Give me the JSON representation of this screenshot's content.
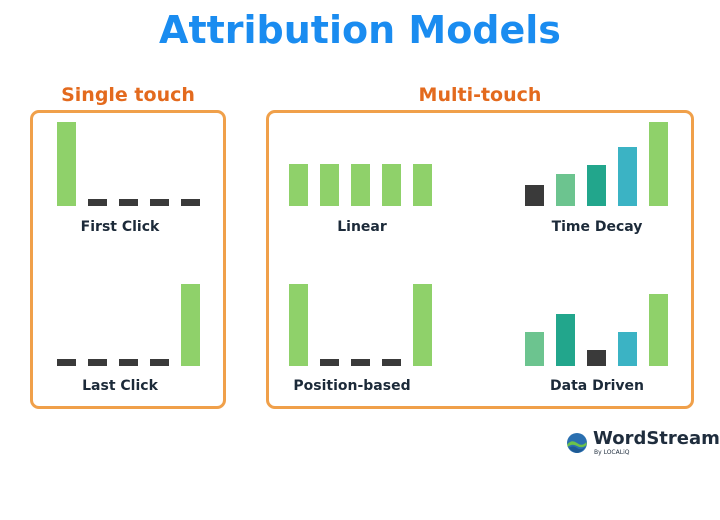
{
  "title": "Attribution Models",
  "sections": {
    "single": "Single touch",
    "multi": "Multi-touch"
  },
  "colors": {
    "title": "#1a8cf0",
    "section": "#e36a1e",
    "frame": "#f0a04a",
    "green": "#8fd16a",
    "mint": "#6cc48f",
    "teal": "#22a68c",
    "aqua": "#3bb3c4",
    "dark": "#3a3a3a"
  },
  "models": [
    {
      "key": "first-click",
      "label": "First Click",
      "weights": [
        1,
        0,
        0,
        0,
        0
      ]
    },
    {
      "key": "last-click",
      "label": "Last Click",
      "weights": [
        0,
        0,
        0,
        0,
        1
      ]
    },
    {
      "key": "linear",
      "label": "Linear",
      "weights": [
        0.5,
        0.5,
        0.5,
        0.5,
        0.5
      ]
    },
    {
      "key": "time-decay",
      "label": "Time Decay",
      "weights": [
        0.25,
        0.38,
        0.49,
        0.7,
        1
      ]
    },
    {
      "key": "position-based",
      "label": "Position-based",
      "weights": [
        1,
        0,
        0,
        0,
        1
      ]
    },
    {
      "key": "data-driven",
      "label": "Data Driven",
      "weights": [
        0.42,
        0.64,
        0.2,
        0.42,
        0.88
      ]
    }
  ],
  "logo": {
    "name": "WordStream",
    "sub": "By LOCALiQ",
    "icon": "wordstream-wave-icon"
  }
}
